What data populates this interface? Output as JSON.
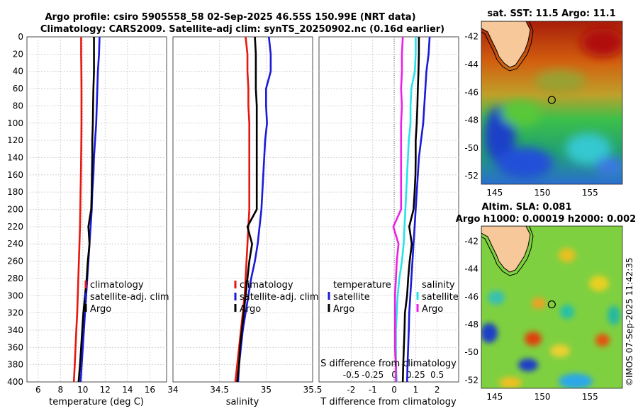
{
  "titles": {
    "line1": "Argo profile: csiro 5905558_58 02-Sep-2025 46.55S 150.99E (NRT data)",
    "line2": "Climatology: CARS2009. Satellite-adj clim: synTS_20250902.nc (0.16d earlier)"
  },
  "watermark": "©IMOS 07-Sep-2025 11:42:35",
  "colors": {
    "climatology": "#e8170e",
    "satellite": "#1a1ad8",
    "argo": "#000000",
    "s_satellite": "#27e3e8",
    "s_argo": "#ee1ee8"
  },
  "chart_data": [
    {
      "id": "temperature",
      "type": "line",
      "xlabel": "temperature (deg C)",
      "ylabel": "",
      "xlim": [
        5,
        17.5
      ],
      "ylim": [
        400,
        0
      ],
      "xticks": [
        6,
        8,
        10,
        12,
        14,
        16
      ],
      "yticks": [
        0,
        20,
        40,
        60,
        80,
        100,
        120,
        140,
        160,
        180,
        200,
        220,
        240,
        260,
        280,
        300,
        320,
        340,
        360,
        380,
        400
      ],
      "grid": true,
      "legend": [
        "climatology",
        "satellite-adj. clim",
        "Argo"
      ],
      "series": [
        {
          "name": "climatology",
          "color_key": "climatology",
          "x": [
            9.85,
            9.85,
            9.87,
            9.88,
            9.88,
            9.88,
            9.87,
            9.85,
            9.83,
            9.8,
            9.78,
            9.75,
            9.7,
            9.65,
            9.6,
            9.55,
            9.5,
            9.42,
            9.35,
            9.28,
            9.2
          ],
          "y": [
            0,
            20,
            40,
            60,
            80,
            100,
            120,
            140,
            160,
            180,
            200,
            220,
            240,
            260,
            280,
            300,
            320,
            340,
            360,
            380,
            400
          ]
        },
        {
          "name": "satellite-adj. clim",
          "color_key": "satellite",
          "x": [
            11.5,
            11.45,
            11.35,
            11.3,
            11.25,
            11.2,
            11.1,
            11.0,
            10.95,
            10.85,
            10.8,
            10.7,
            10.6,
            10.5,
            10.4,
            10.3,
            10.2,
            10.1,
            10.0,
            9.9,
            9.8
          ],
          "y": [
            0,
            20,
            40,
            60,
            80,
            100,
            120,
            140,
            160,
            180,
            200,
            220,
            240,
            260,
            280,
            300,
            320,
            340,
            360,
            380,
            400
          ]
        },
        {
          "name": "Argo",
          "color_key": "argo",
          "x": [
            11.0,
            11.0,
            11.0,
            10.95,
            10.92,
            10.9,
            10.85,
            10.85,
            10.82,
            10.8,
            10.75,
            10.5,
            10.6,
            10.45,
            10.35,
            10.2,
            10.05,
            9.95,
            9.85,
            9.75,
            9.62
          ],
          "y": [
            0,
            20,
            40,
            60,
            80,
            100,
            120,
            140,
            160,
            180,
            200,
            220,
            240,
            260,
            280,
            300,
            320,
            340,
            360,
            380,
            400
          ]
        }
      ]
    },
    {
      "id": "salinity",
      "type": "line",
      "xlabel": "salinity",
      "xlim": [
        34,
        35.5
      ],
      "ylim": [
        400,
        0
      ],
      "xticks": [
        34,
        34.5,
        35,
        35.5
      ],
      "grid": true,
      "legend": [
        "climatology",
        "satellite-adj. clim",
        "Argo"
      ],
      "series": [
        {
          "name": "climatology",
          "color_key": "climatology",
          "x": [
            34.78,
            34.8,
            34.8,
            34.81,
            34.81,
            34.82,
            34.82,
            34.82,
            34.82,
            34.82,
            34.82,
            34.81,
            34.8,
            34.79,
            34.78,
            34.77,
            34.75,
            34.73,
            34.71,
            34.69,
            34.67
          ],
          "y": [
            0,
            20,
            40,
            60,
            80,
            100,
            120,
            140,
            160,
            180,
            200,
            220,
            240,
            260,
            280,
            300,
            320,
            340,
            360,
            380,
            400
          ]
        },
        {
          "name": "satellite-adj. clim",
          "color_key": "satellite",
          "x": [
            35.03,
            35.05,
            35.05,
            35.0,
            35.0,
            35.01,
            34.99,
            34.98,
            34.97,
            34.96,
            34.95,
            34.93,
            34.91,
            34.88,
            34.84,
            34.81,
            34.78,
            34.75,
            34.73,
            34.71,
            34.7
          ],
          "y": [
            0,
            20,
            40,
            60,
            80,
            100,
            120,
            140,
            160,
            180,
            200,
            220,
            240,
            260,
            280,
            300,
            320,
            340,
            360,
            380,
            400
          ]
        },
        {
          "name": "Argo",
          "color_key": "argo",
          "x": [
            34.88,
            34.89,
            34.89,
            34.89,
            34.9,
            34.9,
            34.9,
            34.9,
            34.9,
            34.9,
            34.9,
            34.8,
            34.85,
            34.82,
            34.8,
            34.78,
            34.76,
            34.74,
            34.72,
            34.71,
            34.69
          ],
          "y": [
            0,
            20,
            40,
            60,
            80,
            100,
            120,
            140,
            160,
            180,
            200,
            220,
            240,
            260,
            280,
            300,
            320,
            340,
            360,
            380,
            400
          ]
        }
      ]
    },
    {
      "id": "difference",
      "type": "line",
      "xlabel": "T difference from climatology",
      "toplabel": "S difference from climatology",
      "xlim": [
        -3.5,
        3
      ],
      "ylim": [
        400,
        0
      ],
      "xticks": [
        -2,
        -1,
        0,
        1,
        2
      ],
      "xtick_labels": [
        "-2",
        "-1",
        "0",
        "1",
        "2"
      ],
      "top_xticks_values": [
        -0.5,
        -0.25,
        0,
        0.25,
        0.5
      ],
      "top_xtick_labels": [
        "-0.5",
        "-0.25",
        "0",
        "0.25",
        "0.5"
      ],
      "grid": true,
      "legend_temperature": {
        "heading": "temperature",
        "items": [
          "satellite",
          "Argo"
        ]
      },
      "legend_salinity": {
        "heading": "salinity",
        "items": [
          "satellite",
          "Argo"
        ]
      },
      "series": [
        {
          "name": "T satellite",
          "color_key": "satellite",
          "x": [
            1.65,
            1.6,
            1.5,
            1.45,
            1.4,
            1.35,
            1.25,
            1.15,
            1.1,
            1.05,
            1.0,
            0.95,
            0.9,
            0.85,
            0.8,
            0.75,
            0.7,
            0.68,
            0.65,
            0.62,
            0.6
          ],
          "y": [
            0,
            20,
            40,
            60,
            80,
            100,
            120,
            140,
            160,
            180,
            200,
            220,
            240,
            260,
            280,
            300,
            320,
            340,
            360,
            380,
            400
          ]
        },
        {
          "name": "T Argo",
          "color_key": "argo",
          "x": [
            1.15,
            1.15,
            1.13,
            1.1,
            1.08,
            1.05,
            1.0,
            1.0,
            0.99,
            0.95,
            0.9,
            0.7,
            0.82,
            0.72,
            0.65,
            0.6,
            0.5,
            0.48,
            0.45,
            0.42,
            0.4
          ],
          "y": [
            0,
            20,
            40,
            60,
            80,
            100,
            120,
            140,
            160,
            180,
            200,
            220,
            240,
            260,
            280,
            300,
            320,
            340,
            360,
            380,
            400
          ]
        },
        {
          "name": "S satellite",
          "color_key": "s_satellite",
          "x": [
            0.25,
            0.25,
            0.24,
            0.2,
            0.19,
            0.19,
            0.17,
            0.16,
            0.15,
            0.14,
            0.13,
            0.12,
            0.11,
            0.09,
            0.06,
            0.04,
            0.03,
            0.02,
            0.02,
            0.02,
            0.03
          ],
          "y": [
            0,
            20,
            40,
            60,
            80,
            100,
            120,
            140,
            160,
            180,
            200,
            220,
            240,
            260,
            280,
            300,
            320,
            340,
            360,
            380,
            400
          ]
        },
        {
          "name": "S Argo",
          "color_key": "s_argo",
          "x": [
            0.1,
            0.09,
            0.09,
            0.08,
            0.09,
            0.08,
            0.08,
            0.08,
            0.08,
            0.08,
            0.08,
            -0.01,
            0.05,
            0.03,
            0.02,
            0.01,
            0.01,
            0.01,
            0.01,
            0.02,
            0.02
          ],
          "y": [
            0,
            20,
            40,
            60,
            80,
            100,
            120,
            140,
            160,
            180,
            200,
            220,
            240,
            260,
            280,
            300,
            320,
            340,
            360,
            380,
            400
          ]
        }
      ]
    },
    {
      "id": "sst_map",
      "type": "heatmap",
      "title": "sat. SST: 11.5 Argo: 11.1",
      "xticks": [
        145,
        150,
        155
      ],
      "yticks": [
        -42,
        -44,
        -46,
        -48,
        -50,
        -52
      ],
      "xlim": [
        143.6,
        158.4
      ],
      "ylim": [
        -52.6,
        -40.9
      ],
      "marker": {
        "lon": 150.99,
        "lat": -46.55
      }
    },
    {
      "id": "sla_map",
      "type": "heatmap",
      "title": "Altim. SLA: 0.081",
      "subtitle": "Argo h1000: 0.00019 h2000: 0.002",
      "xticks": [
        145,
        150,
        155
      ],
      "yticks": [
        -42,
        -44,
        -46,
        -48,
        -50,
        -52
      ],
      "xlim": [
        143.6,
        158.4
      ],
      "ylim": [
        -52.6,
        -40.9
      ],
      "marker": {
        "lon": 150.99,
        "lat": -46.55
      }
    }
  ]
}
